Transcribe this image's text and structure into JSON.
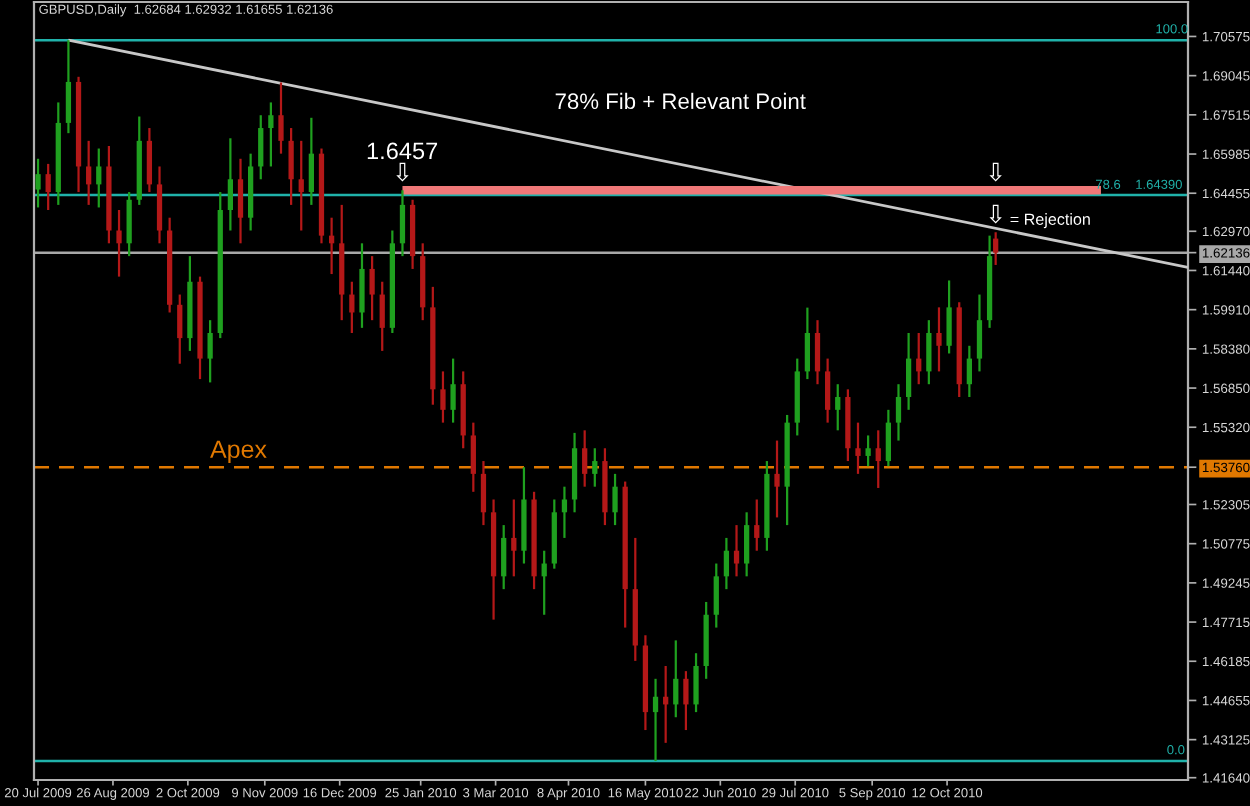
{
  "chart_data": {
    "type": "candlestick",
    "title": "GBPUSD,Daily  1.62684 1.62932 1.61655 1.62136",
    "series": [
      {
        "x": [
          "2009-07-20",
          "2009-07-25",
          "2009-07-30",
          "2009-08-04",
          "2009-08-09",
          "2009-08-14",
          "2009-08-19",
          "2009-08-24",
          "2009-08-29",
          "2009-09-03",
          "2009-09-08",
          "2009-09-13",
          "2009-09-18",
          "2009-09-23",
          "2009-09-28",
          "2009-10-03",
          "2009-10-08",
          "2009-10-13",
          "2009-10-18",
          "2009-10-23",
          "2009-10-28",
          "2009-11-02",
          "2009-11-07",
          "2009-11-12",
          "2009-11-17",
          "2009-11-22",
          "2009-11-27",
          "2009-12-02",
          "2009-12-07",
          "2009-12-12",
          "2009-12-17",
          "2009-12-22",
          "2009-12-27",
          "2010-01-01",
          "2010-01-06",
          "2010-01-11",
          "2010-01-16",
          "2010-01-21",
          "2010-01-26",
          "2010-01-31",
          "2010-02-05",
          "2010-02-10",
          "2010-02-15",
          "2010-02-20",
          "2010-02-25",
          "2010-03-02",
          "2010-03-07",
          "2010-03-12",
          "2010-03-17",
          "2010-03-22",
          "2010-03-27",
          "2010-04-01",
          "2010-04-06",
          "2010-04-11",
          "2010-04-16",
          "2010-04-21",
          "2010-04-26",
          "2010-05-01",
          "2010-05-06",
          "2010-05-11",
          "2010-05-16",
          "2010-05-21",
          "2010-05-26",
          "2010-05-31",
          "2010-06-05",
          "2010-06-10",
          "2010-06-15",
          "2010-06-20",
          "2010-06-25",
          "2010-06-30",
          "2010-07-05",
          "2010-07-10",
          "2010-07-15",
          "2010-07-20",
          "2010-07-25",
          "2010-07-30",
          "2010-08-04",
          "2010-08-09",
          "2010-08-14",
          "2010-08-19",
          "2010-08-24",
          "2010-08-29",
          "2010-09-03",
          "2010-09-08",
          "2010-09-13",
          "2010-09-18",
          "2010-09-23",
          "2010-09-28",
          "2010-10-03",
          "2010-10-08",
          "2010-10-13",
          "2010-10-18",
          "2010-10-23",
          "2010-10-28",
          "2010-11-02",
          "2010-11-05"
        ],
        "ohlc": [
          [
            1.646,
            1.658,
            1.639,
            1.652
          ],
          [
            1.652,
            1.656,
            1.638,
            1.645
          ],
          [
            1.645,
            1.68,
            1.64,
            1.672
          ],
          [
            1.672,
            1.7043,
            1.668,
            1.688
          ],
          [
            1.688,
            1.69,
            1.645,
            1.655
          ],
          [
            1.655,
            1.665,
            1.64,
            1.648
          ],
          [
            1.648,
            1.662,
            1.639,
            1.655
          ],
          [
            1.655,
            1.663,
            1.625,
            1.63
          ],
          [
            1.63,
            1.638,
            1.612,
            1.625
          ],
          [
            1.625,
            1.645,
            1.62,
            1.642
          ],
          [
            1.642,
            1.6745,
            1.64,
            1.665
          ],
          [
            1.665,
            1.67,
            1.645,
            1.648
          ],
          [
            1.648,
            1.655,
            1.625,
            1.63
          ],
          [
            1.63,
            1.635,
            1.598,
            1.601
          ],
          [
            1.601,
            1.605,
            1.578,
            1.588
          ],
          [
            1.588,
            1.62,
            1.583,
            1.61
          ],
          [
            1.61,
            1.612,
            1.572,
            1.58
          ],
          [
            1.58,
            1.595,
            1.5707,
            1.59
          ],
          [
            1.59,
            1.645,
            1.588,
            1.638
          ],
          [
            1.638,
            1.666,
            1.63,
            1.65
          ],
          [
            1.65,
            1.658,
            1.625,
            1.635
          ],
          [
            1.635,
            1.66,
            1.63,
            1.655
          ],
          [
            1.655,
            1.675,
            1.65,
            1.67
          ],
          [
            1.67,
            1.68,
            1.655,
            1.675
          ],
          [
            1.675,
            1.6878,
            1.66,
            1.665
          ],
          [
            1.665,
            1.67,
            1.64,
            1.65
          ],
          [
            1.65,
            1.665,
            1.63,
            1.645
          ],
          [
            1.645,
            1.674,
            1.64,
            1.66
          ],
          [
            1.66,
            1.662,
            1.625,
            1.628
          ],
          [
            1.628,
            1.635,
            1.613,
            1.625
          ],
          [
            1.625,
            1.64,
            1.595,
            1.605
          ],
          [
            1.605,
            1.61,
            1.59,
            1.598
          ],
          [
            1.598,
            1.625,
            1.592,
            1.615
          ],
          [
            1.615,
            1.62,
            1.595,
            1.605
          ],
          [
            1.605,
            1.61,
            1.583,
            1.592
          ],
          [
            1.592,
            1.63,
            1.59,
            1.625
          ],
          [
            1.625,
            1.6457,
            1.62,
            1.64
          ],
          [
            1.64,
            1.642,
            1.615,
            1.62
          ],
          [
            1.62,
            1.625,
            1.595,
            1.6
          ],
          [
            1.6,
            1.608,
            1.562,
            1.568
          ],
          [
            1.568,
            1.575,
            1.555,
            1.56
          ],
          [
            1.56,
            1.58,
            1.555,
            1.57
          ],
          [
            1.57,
            1.575,
            1.545,
            1.55
          ],
          [
            1.55,
            1.555,
            1.528,
            1.535
          ],
          [
            1.535,
            1.54,
            1.515,
            1.52
          ],
          [
            1.52,
            1.525,
            1.4781,
            1.495
          ],
          [
            1.495,
            1.515,
            1.49,
            1.51
          ],
          [
            1.51,
            1.525,
            1.495,
            1.505
          ],
          [
            1.505,
            1.5376,
            1.5,
            1.525
          ],
          [
            1.525,
            1.528,
            1.49,
            1.495
          ],
          [
            1.495,
            1.505,
            1.48,
            1.5
          ],
          [
            1.5,
            1.525,
            1.498,
            1.52
          ],
          [
            1.52,
            1.53,
            1.51,
            1.525
          ],
          [
            1.525,
            1.551,
            1.52,
            1.545
          ],
          [
            1.545,
            1.552,
            1.53,
            1.535
          ],
          [
            1.535,
            1.545,
            1.53,
            1.54
          ],
          [
            1.54,
            1.545,
            1.515,
            1.52
          ],
          [
            1.52,
            1.535,
            1.515,
            1.53
          ],
          [
            1.53,
            1.532,
            1.475,
            1.49
          ],
          [
            1.49,
            1.51,
            1.462,
            1.468
          ],
          [
            1.468,
            1.472,
            1.435,
            1.442
          ],
          [
            1.442,
            1.455,
            1.4229,
            1.448
          ],
          [
            1.448,
            1.46,
            1.43,
            1.445
          ],
          [
            1.445,
            1.47,
            1.44,
            1.455
          ],
          [
            1.455,
            1.458,
            1.435,
            1.445
          ],
          [
            1.445,
            1.465,
            1.442,
            1.46
          ],
          [
            1.46,
            1.485,
            1.455,
            1.48
          ],
          [
            1.48,
            1.5,
            1.475,
            1.495
          ],
          [
            1.495,
            1.51,
            1.49,
            1.505
          ],
          [
            1.505,
            1.515,
            1.495,
            1.5
          ],
          [
            1.5,
            1.52,
            1.495,
            1.515
          ],
          [
            1.515,
            1.525,
            1.505,
            1.51
          ],
          [
            1.51,
            1.54,
            1.505,
            1.535
          ],
          [
            1.535,
            1.548,
            1.518,
            1.53
          ],
          [
            1.53,
            1.558,
            1.515,
            1.555
          ],
          [
            1.555,
            1.58,
            1.55,
            1.575
          ],
          [
            1.575,
            1.5999,
            1.572,
            1.59
          ],
          [
            1.59,
            1.595,
            1.57,
            1.575
          ],
          [
            1.575,
            1.58,
            1.555,
            1.56
          ],
          [
            1.56,
            1.57,
            1.552,
            1.565
          ],
          [
            1.565,
            1.568,
            1.54,
            1.545
          ],
          [
            1.545,
            1.555,
            1.535,
            1.542
          ],
          [
            1.542,
            1.55,
            1.538,
            1.545
          ],
          [
            1.545,
            1.552,
            1.5295,
            1.54
          ],
          [
            1.54,
            1.56,
            1.538,
            1.555
          ],
          [
            1.555,
            1.57,
            1.548,
            1.565
          ],
          [
            1.565,
            1.59,
            1.56,
            1.58
          ],
          [
            1.58,
            1.59,
            1.57,
            1.575
          ],
          [
            1.575,
            1.595,
            1.57,
            1.59
          ],
          [
            1.59,
            1.6,
            1.575,
            1.585
          ],
          [
            1.585,
            1.6105,
            1.582,
            1.6
          ],
          [
            1.6,
            1.602,
            1.565,
            1.57
          ],
          [
            1.57,
            1.585,
            1.565,
            1.58
          ],
          [
            1.58,
            1.605,
            1.575,
            1.595
          ],
          [
            1.595,
            1.628,
            1.592,
            1.62
          ],
          [
            1.62684,
            1.62932,
            1.61655,
            1.62136
          ]
        ],
        "colors": [
          "#1fa01f",
          "#b41818",
          "#1fa01f",
          "#1fa01f",
          "#b41818",
          "#b41818",
          "#1fa01f",
          "#b41818",
          "#b41818",
          "#1fa01f",
          "#1fa01f",
          "#b41818",
          "#b41818",
          "#b41818",
          "#b41818",
          "#1fa01f",
          "#b41818",
          "#1fa01f",
          "#1fa01f",
          "#1fa01f",
          "#b41818",
          "#1fa01f",
          "#1fa01f",
          "#1fa01f",
          "#b41818",
          "#b41818",
          "#b41818",
          "#1fa01f",
          "#b41818",
          "#b41818",
          "#b41818",
          "#b41818",
          "#1fa01f",
          "#b41818",
          "#b41818",
          "#1fa01f",
          "#1fa01f",
          "#b41818",
          "#b41818",
          "#b41818",
          "#b41818",
          "#1fa01f",
          "#b41818",
          "#b41818",
          "#b41818",
          "#b41818",
          "#1fa01f",
          "#b41818",
          "#1fa01f",
          "#b41818",
          "#1fa01f",
          "#1fa01f",
          "#1fa01f",
          "#1fa01f",
          "#b41818",
          "#1fa01f",
          "#b41818",
          "#1fa01f",
          "#b41818",
          "#b41818",
          "#b41818",
          "#1fa01f",
          "#b41818",
          "#1fa01f",
          "#b41818",
          "#1fa01f",
          "#1fa01f",
          "#1fa01f",
          "#1fa01f",
          "#b41818",
          "#1fa01f",
          "#b41818",
          "#1fa01f",
          "#b41818",
          "#1fa01f",
          "#1fa01f",
          "#1fa01f",
          "#b41818",
          "#b41818",
          "#1fa01f",
          "#b41818",
          "#b41818",
          "#1fa01f",
          "#b41818",
          "#1fa01f",
          "#1fa01f",
          "#1fa01f",
          "#b41818",
          "#1fa01f",
          "#b41818",
          "#1fa01f",
          "#b41818",
          "#1fa01f",
          "#1fa01f",
          "#1fa01f",
          "#b41818"
        ]
      },
      {
        "type": "line",
        "x": [
          "2009-08-04",
          "2011-02-08"
        ],
        "values": [
          1.7043,
          1.6156
        ],
        "color": "#c8c8c8"
      },
      {
        "type": "line",
        "x": [
          "2010-01-16",
          "2010-12-27"
        ],
        "values": [
          1.6457,
          1.6457
        ],
        "color": "#f07878"
      }
    ],
    "xlim": [
      "2009-07-18",
      "2011-02-08"
    ],
    "xticks": [
      {
        "value": "2009-07-20",
        "label": "20 Jul 2009"
      },
      {
        "value": "2009-08-26",
        "label": "26 Aug 2009"
      },
      {
        "value": "2009-10-02",
        "label": "2 Oct 2009"
      },
      {
        "value": "2009-11-09",
        "label": "9 Nov 2009"
      },
      {
        "value": "2009-12-16",
        "label": "16 Dec 2009"
      },
      {
        "value": "2010-01-25",
        "label": "25 Jan 2010"
      },
      {
        "value": "2010-03-03",
        "label": "3 Mar 2010"
      },
      {
        "value": "2010-04-08",
        "label": "8 Apr 2010"
      },
      {
        "value": "2010-05-16",
        "label": "16 May 2010"
      },
      {
        "value": "2010-06-22",
        "label": "22 Jun 2010"
      },
      {
        "value": "2010-07-29",
        "label": "29 Jul 2010"
      },
      {
        "value": "2010-09-05",
        "label": "5 Sep 2010"
      },
      {
        "value": "2010-10-12",
        "label": "12 Oct 2010"
      }
    ],
    "ylim": [
      1.4155,
      1.7192
    ],
    "yticks": [
      1.70575,
      1.69045,
      1.67515,
      1.65985,
      1.64455,
      {
        "value": 1.6297,
        "label": "1.62970"
      },
      {
        "value": 1.62136,
        "label": "1.62136"
      },
      {
        "value": 1.6144,
        "label": "1.61440"
      },
      {
        "value": 1.5991,
        "label": "1.59910"
      },
      {
        "value": 1.5838,
        "label": "1.58380"
      },
      {
        "value": 1.5685,
        "label": "1.56850"
      },
      {
        "value": 1.5532,
        "label": "1.55320"
      },
      {
        "value": 1.5376,
        "label": "1.53760"
      },
      1.52305,
      1.50775,
      1.49245,
      1.47715,
      1.46185,
      1.44655,
      1.43125,
      {
        "value": 1.4164,
        "label": "1.41640"
      }
    ],
    "ref_lines": [
      {
        "axis": "y",
        "value": 1.7043,
        "color": "#20b2aa"
      },
      {
        "axis": "y",
        "value": 1.6439,
        "label": "78.6    1.64390",
        "color": "#20b2aa"
      },
      {
        "axis": "y",
        "value": 1.4229,
        "color": "#20b2aa"
      },
      {
        "axis": "y",
        "value": 1.62136,
        "color": "#a8a8a8"
      },
      {
        "axis": "y",
        "value": 1.5376,
        "color": "#e07800",
        "line_style": "dashed"
      }
    ],
    "annotations": [
      "78% Fib + Relevant Point",
      "1.6457",
      {
        "text": "⇩",
        "x": "2010-01-16",
        "y": 1.6457
      },
      {
        "text": "⇩",
        "x": "2010-11-05",
        "y": 1.6457
      },
      {
        "text": "⇩",
        "x": "2010-11-05",
        "y": 1.6293
      },
      {
        "text": "= Rejection",
        "x": "2010-12-02",
        "y": 1.6293
      },
      {
        "text": "Apex",
        "x": "2009-10-27",
        "y": 1.5376
      },
      {
        "text": "100.0",
        "x": "2011-01-31",
        "y": 1.7043
      },
      {
        "text": "0.0",
        "x": "2011-02-02",
        "y": 1.4229
      }
    ]
  }
}
